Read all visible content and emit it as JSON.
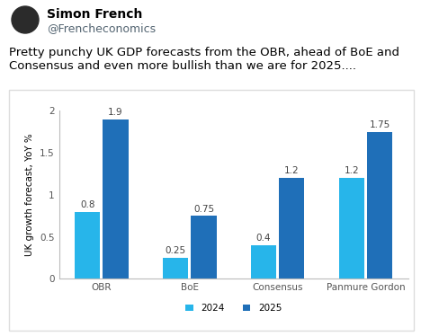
{
  "tweet": {
    "name": "Simon French",
    "handle": "@Frencheconomics",
    "text": "Pretty punchy UK GDP forecasts from the OBR, ahead of BoE and Consensus and even more bullish than we are for 2025...."
  },
  "chart_data": {
    "type": "bar",
    "y_label": "UK growth forecast, YoY %",
    "categories": [
      "OBR",
      "BoE",
      "Consensus",
      "Panmure Gordon"
    ],
    "series": [
      {
        "name": "2024",
        "color": "#27b5ea",
        "values": [
          0.8,
          0.25,
          0.4,
          1.2
        ]
      },
      {
        "name": "2025",
        "color": "#1f6fb8",
        "values": [
          1.9,
          0.75,
          1.2,
          1.75
        ]
      }
    ],
    "ylim": [
      0,
      2
    ],
    "yticks": [
      0,
      0.5,
      1,
      1.5,
      2
    ],
    "grid": false,
    "legend": "lower center",
    "data_labels": true
  }
}
